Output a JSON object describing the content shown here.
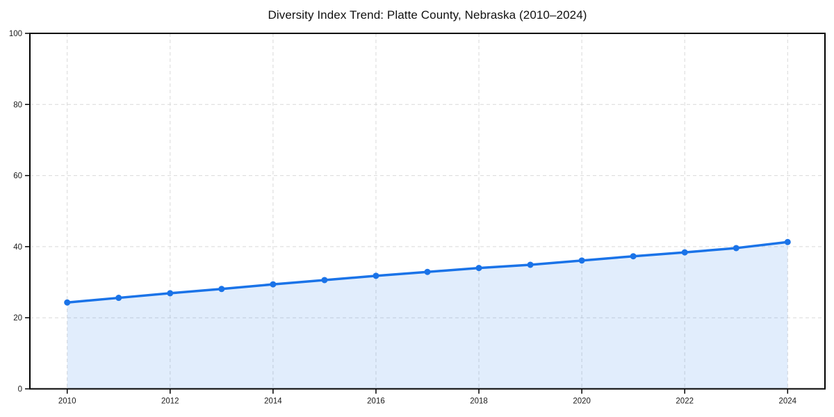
{
  "page": {
    "background": "#ffffff"
  },
  "chart_data": {
    "type": "line",
    "title": "Diversity Index Trend: Platte County, Nebraska (2010–2024)",
    "xlabel": "",
    "ylabel": "",
    "x": [
      2010,
      2011,
      2012,
      2013,
      2014,
      2015,
      2016,
      2017,
      2018,
      2019,
      2020,
      2021,
      2022,
      2023,
      2024
    ],
    "series": [
      {
        "name": "Diversity Index",
        "values": [
          24.3,
          25.6,
          26.9,
          28.1,
          29.4,
          30.6,
          31.8,
          32.9,
          34.0,
          34.9,
          36.1,
          37.3,
          38.4,
          39.6,
          41.3
        ]
      }
    ],
    "xlim": [
      2010,
      2024
    ],
    "ylim": [
      0,
      100
    ],
    "xticks": [
      2010,
      2012,
      2014,
      2016,
      2018,
      2020,
      2022,
      2024
    ],
    "yticks": [
      0,
      20,
      40,
      60,
      80,
      100
    ],
    "grid": "dashed",
    "legend": null,
    "style": {
      "line_color": "#1a73e8",
      "marker_color": "#1a73e8",
      "fill_color": "rgba(26,115,232,0.13)",
      "grid_color": "#d9d9d9",
      "axis_color": "#000000",
      "text_color": "#1a1a1a",
      "marker": "circle"
    }
  }
}
